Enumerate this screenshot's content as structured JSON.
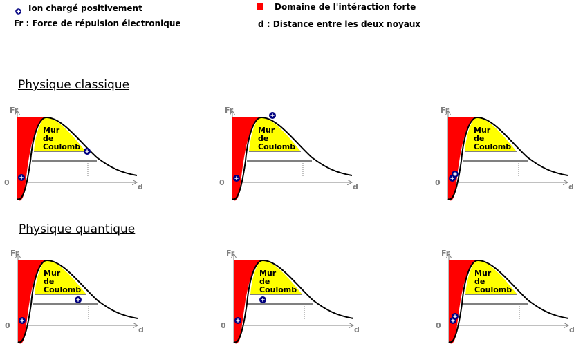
{
  "legend": {
    "ion": "Ion chargé positivement",
    "fr": "Fr : Force de répulsion électronique",
    "strong": "Domaine de l'intéraction forte",
    "d": "d  : Distance entre les deux noyaux"
  },
  "sections": {
    "classic": "Physique classique",
    "quantum": "Physique quantique"
  },
  "axis": {
    "y": "Fr",
    "x": "d",
    "zero": "0"
  },
  "wall": {
    "line1": "Mur",
    "line2": "de",
    "line3": "Coulomb"
  },
  "colors": {
    "strong": "#ff0000",
    "wall": "#ffff00",
    "ion": "#000080",
    "axis": "#808080"
  }
}
